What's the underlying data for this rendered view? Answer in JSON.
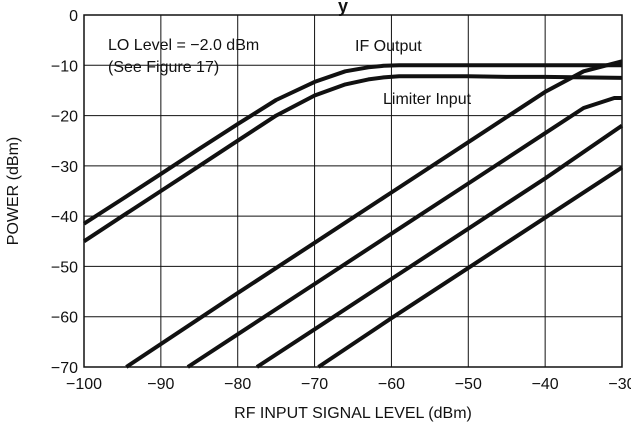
{
  "chart_data": {
    "type": "line",
    "title_fragment": "y",
    "xlabel": "RF INPUT SIGNAL LEVEL (dBm)",
    "ylabel": "POWER (dBm)",
    "xlim": [
      -100,
      -30
    ],
    "ylim": [
      -70,
      0
    ],
    "xticks": [
      -100,
      -90,
      -80,
      -70,
      -60,
      -50,
      -40,
      -30
    ],
    "yticks": [
      0,
      -10,
      -20,
      -30,
      -40,
      -50,
      -60,
      -70
    ],
    "x_tick_labels": [
      "−100",
      "−90",
      "−80",
      "−70",
      "−60",
      "−50",
      "−40",
      "−30"
    ],
    "y_tick_labels": [
      "0",
      "−10",
      "−20",
      "−30",
      "−40",
      "−50",
      "−60",
      "−70"
    ],
    "grid": true,
    "line_color": "#111111",
    "annotations": {
      "lo_level": "LO Level = −2.0 dBm",
      "see_figure": "(See Figure 17)",
      "if_output": "IF Output",
      "limiter_input": "Limiter Input"
    },
    "series": [
      {
        "name": "IF Output",
        "x": [
          -100,
          -95,
          -90,
          -85,
          -80,
          -75,
          -70,
          -66,
          -63,
          -61,
          -59,
          -55,
          -50,
          -45,
          -40,
          -35,
          -30
        ],
        "y": [
          -41.5,
          -36.6,
          -31.6,
          -26.6,
          -21.7,
          -16.9,
          -13.3,
          -11.2,
          -10.4,
          -10.1,
          -10.0,
          -10.0,
          -10.0,
          -10.0,
          -10.0,
          -10.0,
          -10.0
        ]
      },
      {
        "name": "Limiter Input",
        "x": [
          -100,
          -95,
          -90,
          -85,
          -80,
          -75,
          -70,
          -66,
          -63,
          -61,
          -59,
          -55,
          -50,
          -45,
          -40,
          -35,
          -30
        ],
        "y": [
          -45.0,
          -40.0,
          -35.0,
          -30.0,
          -25.0,
          -20.0,
          -16.0,
          -13.8,
          -12.8,
          -12.4,
          -12.2,
          -12.2,
          -12.2,
          -12.3,
          -12.3,
          -12.4,
          -12.5
        ]
      },
      {
        "x": [
          -94.5,
          -80,
          -70,
          -60,
          -50,
          -40,
          -35,
          -30
        ],
        "y": [
          -70.0,
          -55.3,
          -45.3,
          -35.3,
          -25.3,
          -15.3,
          -11.2,
          -9.2
        ]
      },
      {
        "x": [
          -86.5,
          -80,
          -70,
          -60,
          -50,
          -40,
          -35,
          -31,
          -30
        ],
        "y": [
          -70.0,
          -63.5,
          -53.5,
          -43.5,
          -33.5,
          -23.5,
          -18.5,
          -16.5,
          -16.5
        ]
      },
      {
        "x": [
          -77.5,
          -70,
          -60,
          -50,
          -40,
          -30
        ],
        "y": [
          -70.0,
          -62.5,
          -52.5,
          -42.5,
          -32.5,
          -22.0
        ]
      },
      {
        "x": [
          -69.5,
          -60,
          -50,
          -40,
          -30
        ],
        "y": [
          -70.0,
          -60.3,
          -50.3,
          -40.3,
          -30.3
        ]
      }
    ]
  }
}
